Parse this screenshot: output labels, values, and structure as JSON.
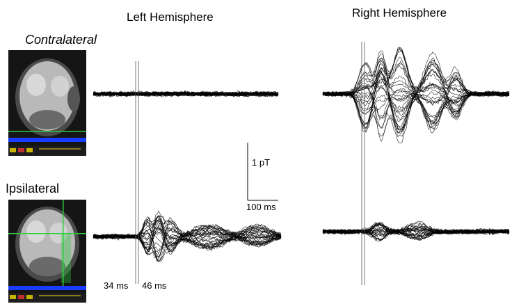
{
  "headers": {
    "left_hemisphere": "Left Hemisphere",
    "right_hemisphere": "Right Hemisphere"
  },
  "conditions": {
    "contralateral": "Contralateral",
    "ipsilateral": "Ipsilateral"
  },
  "scale_bar": {
    "amplitude_label": "1 pT",
    "time_label": "100 ms"
  },
  "latency_markers": {
    "first": "34 ms",
    "second": "46 ms"
  },
  "colors": {
    "trace": "#000000",
    "mri_crosshair": "#2ecc40",
    "mri_toolbar": "#1a3cff",
    "mri_status": "#c8b400"
  },
  "mri_panels": [
    {
      "name": "contralateral-mri",
      "crosshair": "horizontal"
    },
    {
      "name": "ipsilateral-mri",
      "crosshair": "cross"
    }
  ]
}
